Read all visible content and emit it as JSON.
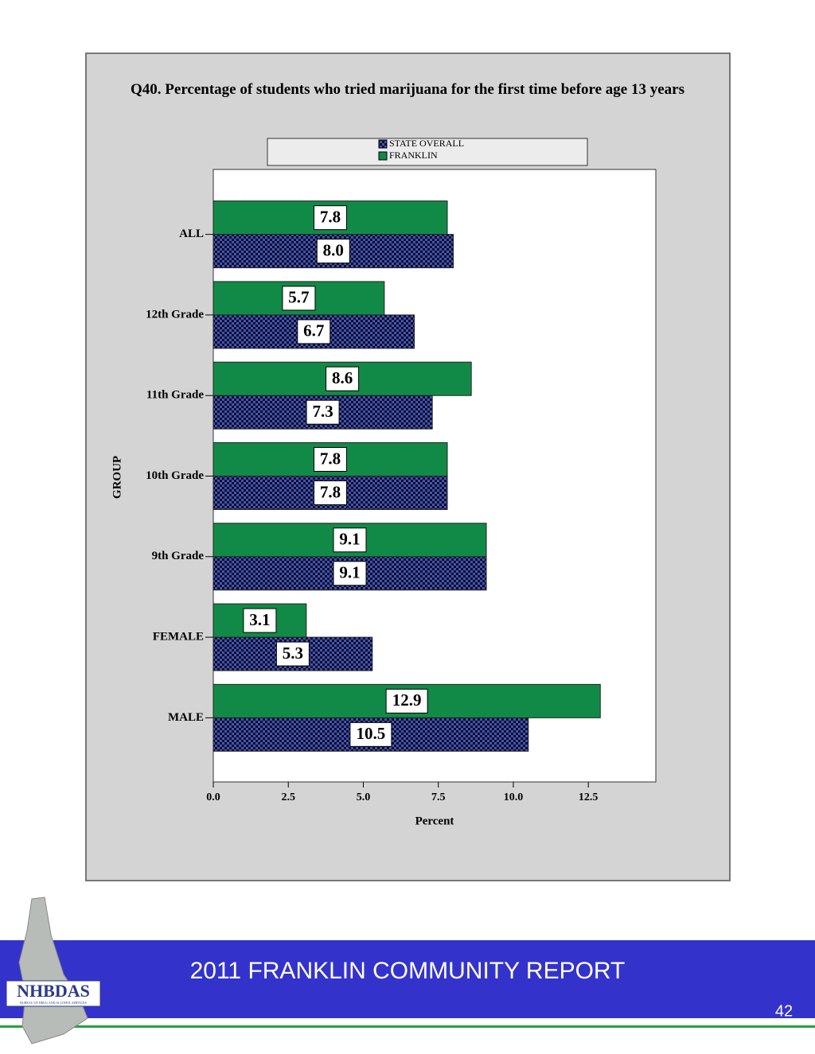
{
  "chart_data": {
    "type": "barh",
    "title": "Q40. Percentage of students who tried marijuana for the first time before age 13 years",
    "xlabel": "Percent",
    "ylabel": "GROUP",
    "categories": [
      "ALL",
      "12th Grade",
      "11th Grade",
      "10th Grade",
      "9th Grade",
      "FEMALE",
      "MALE"
    ],
    "series": [
      {
        "name": "STATE OVERALL",
        "color": "#3f51c8",
        "pattern": "checker",
        "values": [
          8.0,
          6.7,
          7.3,
          7.8,
          9.1,
          5.3,
          10.5
        ],
        "value_labels": [
          "8.0",
          "6.7",
          "7.3",
          "7.8",
          "9.1",
          "5.3",
          "10.5"
        ]
      },
      {
        "name": "FRANKLIN",
        "color": "#128a47",
        "values": [
          7.8,
          5.7,
          8.6,
          7.8,
          9.1,
          3.1,
          12.9
        ],
        "value_labels": [
          "7.8",
          "5.7",
          "8.6",
          "7.8",
          "9.1",
          "3.1",
          "12.9"
        ]
      }
    ],
    "xlim": [
      0,
      14.75
    ],
    "xticks": [
      {
        "value": 0,
        "label": "0.0"
      },
      2.5,
      {
        "value": 5,
        "label": "5.0"
      },
      7.5,
      {
        "value": 10,
        "label": "10.0"
      },
      12.5
    ]
  },
  "footer": {
    "title": "2011 FRANKLIN COMMUNITY REPORT",
    "page": "42"
  },
  "logo": {
    "name": "NHBDAS",
    "subtitle": "BUREAU OF DRUG AND ALCOHOL SERVICES"
  }
}
